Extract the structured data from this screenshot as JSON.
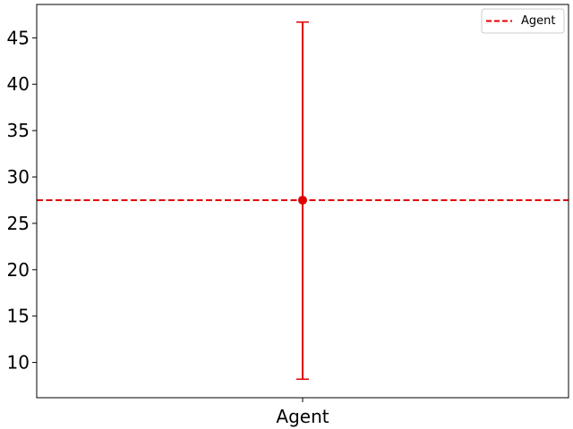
{
  "chart_data": {
    "type": "scatter",
    "title": "",
    "xlabel": "",
    "ylabel": "",
    "categories": [
      "Agent"
    ],
    "series": [
      {
        "name": "Agent",
        "values": [
          27.5
        ],
        "error_low": [
          8.2
        ],
        "error_high": [
          46.7
        ],
        "color": "#e00000"
      }
    ],
    "reference_line": {
      "y": 27.5,
      "style": "dashed",
      "label": "Agent",
      "color": "#e00000"
    },
    "ylim": [
      6.2,
      48.6
    ],
    "yticks": [
      10,
      15,
      20,
      25,
      30,
      35,
      40,
      45
    ],
    "grid": false,
    "legend": {
      "position": "top-right",
      "entries": [
        "Agent"
      ]
    }
  }
}
